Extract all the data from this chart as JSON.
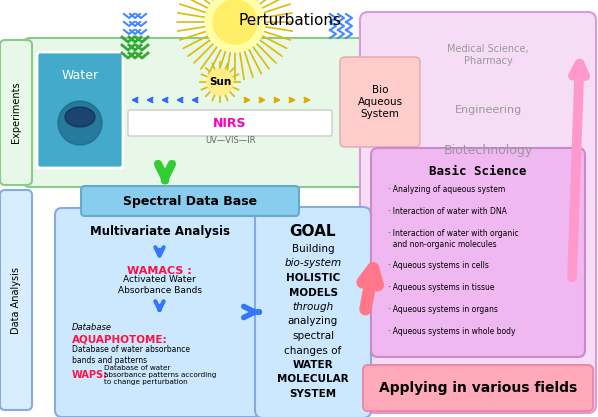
{
  "bg_color": "#ffffff",
  "experiments_label": "Experiments",
  "data_analysis_label": "Data Analysis",
  "perturbations_text": "Perturbations",
  "water_text": "Water",
  "sun_text": "Sun",
  "nirs_text": "NIRS",
  "uv_vis_ir_text": "UV—VIS—IR",
  "bio_aqueous_text": "Bio\nAqueous\nSystem",
  "spectral_db_text": "Spectral Data Base",
  "multivariate_text": "Multivariate Analysis",
  "wamacs_label": "WAMACS :",
  "wamacs_desc": "Activated Water\nAbsorbance Bands",
  "database_label": "Database",
  "aquaphotome_label": "AQUAPHOTOME:",
  "aquaphotome_desc": "Database of water absorbance\nbands and patterns",
  "waps_label": "WAPS:",
  "waps_desc": "Database of water\nabsorbance patterns according\nto change perturbation",
  "goal_text": "GOAL",
  "goal_lines": [
    {
      "text": "Building",
      "style": "normal",
      "weight": "normal"
    },
    {
      "text": "bio-system",
      "style": "italic",
      "weight": "normal"
    },
    {
      "text": "HOLISTIC",
      "style": "normal",
      "weight": "bold"
    },
    {
      "text": "MODELS",
      "style": "normal",
      "weight": "bold"
    },
    {
      "text": "through",
      "style": "italic",
      "weight": "normal"
    },
    {
      "text": "analyzing",
      "style": "normal",
      "weight": "normal"
    },
    {
      "text": "spectral",
      "style": "normal",
      "weight": "normal"
    },
    {
      "text": "changes of",
      "style": "normal",
      "weight": "normal"
    },
    {
      "text": "WATER",
      "style": "normal",
      "weight": "bold"
    },
    {
      "text": "MOLECULAR",
      "style": "normal",
      "weight": "bold"
    },
    {
      "text": "SYSTEM",
      "style": "normal",
      "weight": "bold"
    }
  ],
  "medical_text": "Medical Science,\nPharmacy",
  "engineering_text": "Engineering",
  "biotechnology_text": "Biotechnology",
  "basic_science_text": "Basic Science",
  "basic_science_items": [
    "· Analyzing of aqueous system",
    "· Interaction of water with DNA",
    "· Interaction of water with organic\n  and non-organic molecules",
    "· Aqueous systems in cells",
    "· Aqueous systems in tissue",
    "· Aqueous systems in organs",
    "· Aqueous systems in whole body"
  ],
  "applying_text": "Applying in various fields",
  "color_exp_bg": "#e8f8e8",
  "color_exp_border": "#88cc88",
  "color_da_bg": "#d8eeff",
  "color_da_border": "#88aadd",
  "color_spectral_bg": "#88ccee",
  "color_mv_bg": "#cce8ff",
  "color_mv_border": "#88aadd",
  "color_goal_bg": "#cce8ff",
  "color_goal_border": "#88aadd",
  "color_right_bg": "#f5ddf5",
  "color_right_border": "#dd99dd",
  "color_bs_bg": "#f0b8f0",
  "color_bs_border": "#cc88cc",
  "color_applying_bg": "#ffaabb",
  "color_water_bg": "#44aacc",
  "color_bio_bg": "#ffcccc",
  "color_bio_border": "#ddaaaa",
  "color_sun_bg": "#ffee88",
  "color_wamacs": "#ff1144",
  "color_aquaphotome": "#ff1144",
  "color_waps": "#ff1144",
  "color_blue_arrow": "#3377ff",
  "color_green_arrow": "#33cc33",
  "color_pink_arrow": "#ff8899"
}
